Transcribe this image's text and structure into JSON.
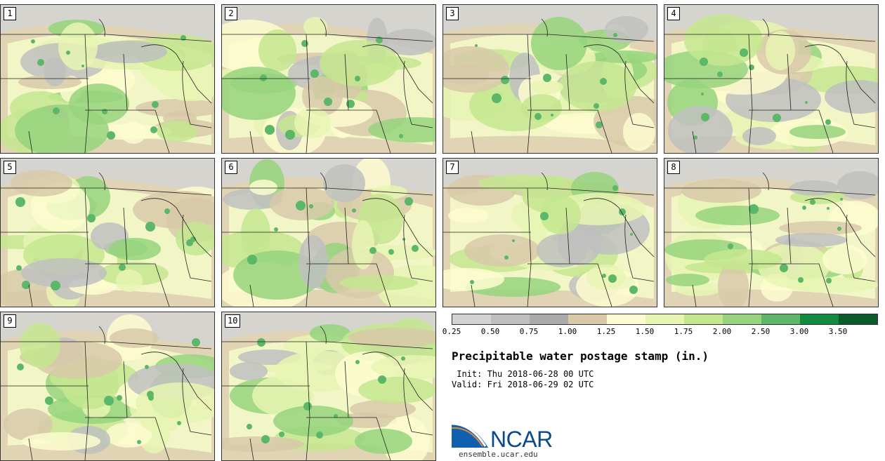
{
  "panels": [
    {
      "label": "1"
    },
    {
      "label": "2"
    },
    {
      "label": "3"
    },
    {
      "label": "4"
    },
    {
      "label": "5"
    },
    {
      "label": "6"
    },
    {
      "label": "7"
    },
    {
      "label": "8"
    },
    {
      "label": "9"
    },
    {
      "label": "10"
    }
  ],
  "colorbar": {
    "colors": [
      "#d3d3d3",
      "#bfbfbf",
      "#aaaaaa",
      "#d8c9a9",
      "#fdfbcf",
      "#e7f5b3",
      "#c4e68f",
      "#96d47d",
      "#5cb768",
      "#128a40",
      "#0b5a2b",
      "#0b3ab0",
      "#0027b7"
    ],
    "ticks": [
      "0.25",
      "0.50",
      "0.75",
      "1.00",
      "1.25",
      "1.50",
      "1.75",
      "2.00",
      "2.50",
      "3.00",
      "3.50"
    ]
  },
  "title": "Precipitable water postage stamp (in.)",
  "init": " Init: Thu 2018-06-28 00 UTC",
  "valid": "Valid: Fri 2018-06-29 02 UTC",
  "logo": {
    "text": "NCAR",
    "site": "ensemble.ucar.edu"
  }
}
